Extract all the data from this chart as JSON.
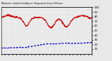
{
  "title": "Milwaukee  Outdoor Humidity vs. Temperature Every 5 Minutes",
  "bg_color": "#e8e8e8",
  "plot_bg_color": "#e8e8e8",
  "grid_color": "#ffffff",
  "red_line_color": "#cc0000",
  "blue_line_color": "#0000cc",
  "ylim": [
    0,
    100
  ],
  "right_yticks": [
    10,
    20,
    30,
    40,
    50,
    60,
    70,
    80,
    90,
    100
  ],
  "right_ytick_labels": [
    "10",
    "20",
    "30",
    "40",
    "50",
    "60",
    "70",
    "80",
    "90",
    "100"
  ],
  "n_points": 288,
  "figsize": [
    1.6,
    0.87
  ],
  "dpi": 100
}
